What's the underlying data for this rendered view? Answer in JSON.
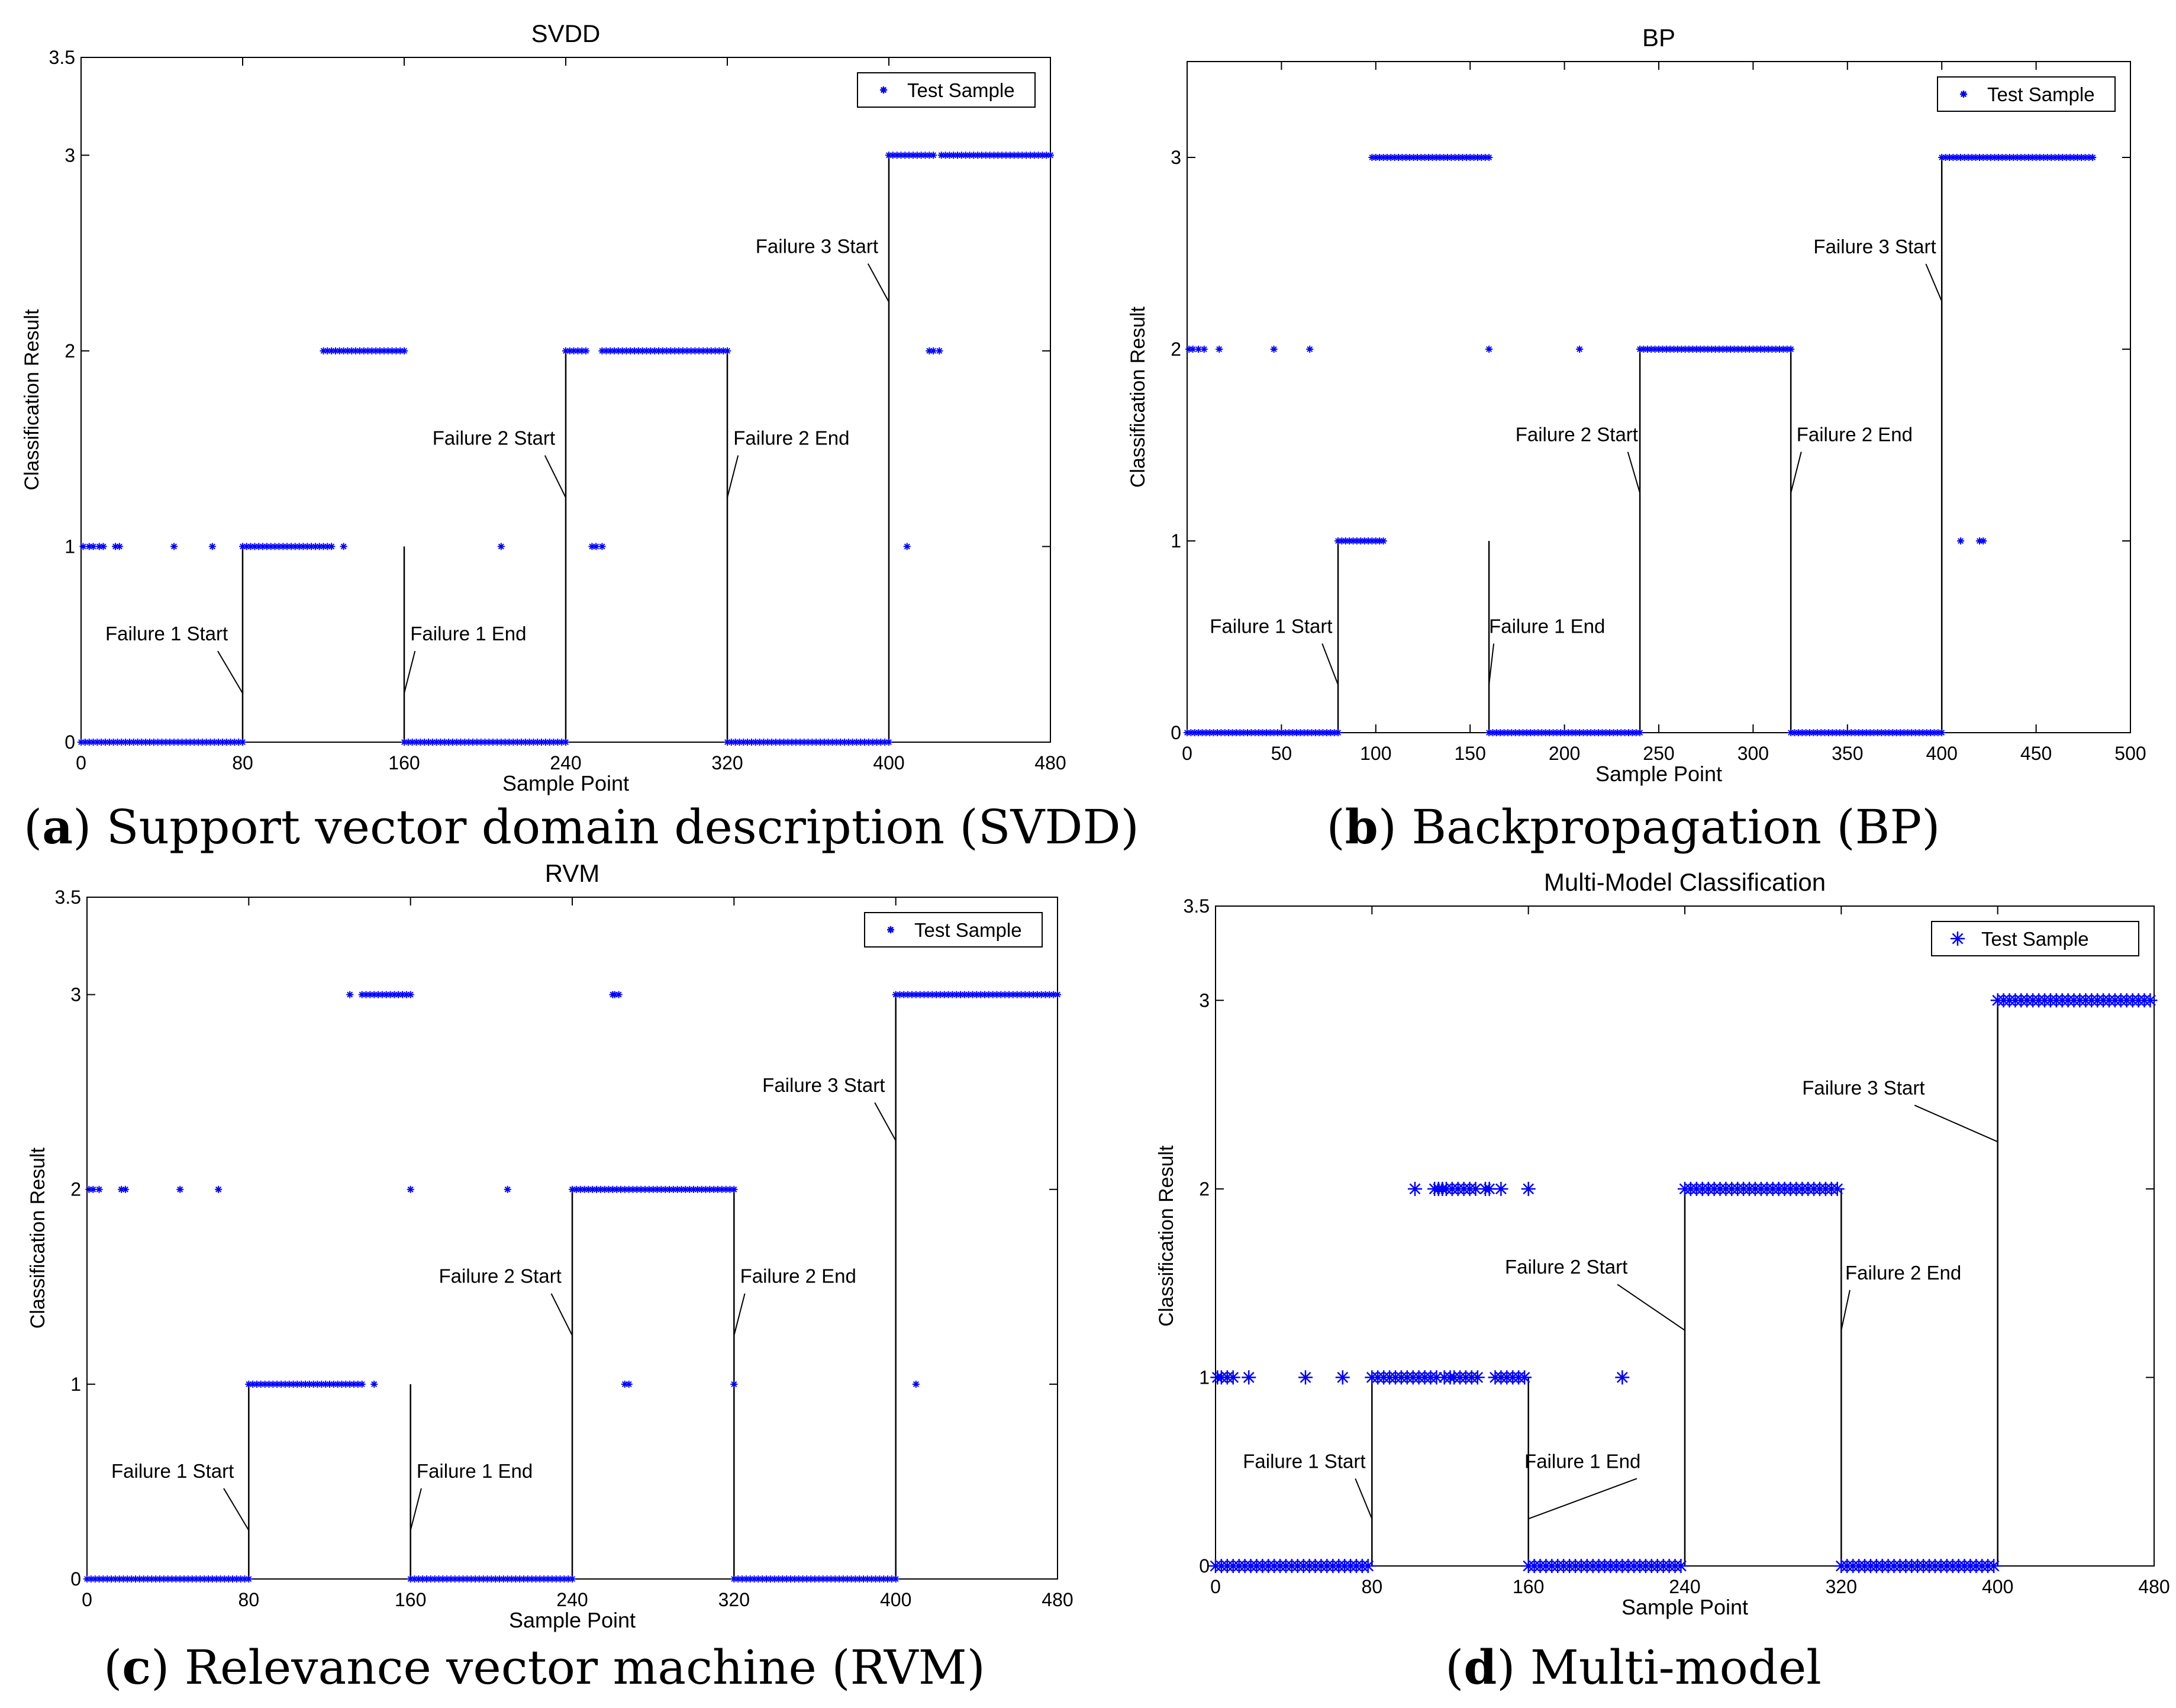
{
  "colors": {
    "marker": "#0000ff",
    "axis": "#000000",
    "background": "#ffffff"
  },
  "captions": [
    {
      "letter": "a",
      "text": "Support vector domain description (SVDD)"
    },
    {
      "letter": "b",
      "text": "Backpropagation (BP)"
    },
    {
      "letter": "c",
      "text": "Relevance vector machine (RVM)"
    },
    {
      "letter": "d",
      "text": "Multi-model"
    }
  ],
  "chart_data": [
    {
      "type": "scatter",
      "title": "SVDD",
      "xlabel": "Sample Point",
      "ylabel": "Classification Result",
      "xlim": [
        0,
        480
      ],
      "ylim": [
        0,
        3.5
      ],
      "xticks": [
        0,
        80,
        160,
        240,
        320,
        400,
        480
      ],
      "yticks": [
        0,
        1,
        2,
        3,
        3.5
      ],
      "ytick_labels": [
        "0",
        "1",
        "2",
        "3",
        "3.5"
      ],
      "legend": {
        "label": "Test Sample",
        "position": "top-right"
      },
      "marker": "small-star",
      "segments": [
        {
          "from": 0,
          "to": 80,
          "value": 0
        },
        {
          "from": 80,
          "to": 125,
          "value": 1
        },
        {
          "from": 160,
          "to": 240,
          "value": 0
        },
        {
          "from": 240,
          "to": 250,
          "value": 2
        },
        {
          "from": 258,
          "to": 320,
          "value": 2
        },
        {
          "from": 320,
          "to": 400,
          "value": 0
        },
        {
          "from": 400,
          "to": 422,
          "value": 3
        },
        {
          "from": 426,
          "to": 480,
          "value": 3
        }
      ],
      "clusters": [
        {
          "from": 120,
          "to": 160,
          "value": 2
        }
      ],
      "points": [
        [
          1,
          1
        ],
        [
          4,
          1
        ],
        [
          6,
          1
        ],
        [
          9,
          1
        ],
        [
          11,
          1
        ],
        [
          17,
          1
        ],
        [
          19,
          1
        ],
        [
          46,
          1
        ],
        [
          65,
          1
        ],
        [
          130,
          1
        ],
        [
          208,
          1
        ],
        [
          253,
          1
        ],
        [
          255,
          1
        ],
        [
          258,
          1
        ],
        [
          409,
          1
        ],
        [
          420,
          2
        ],
        [
          422,
          2
        ],
        [
          425,
          2
        ]
      ],
      "vlines": [
        {
          "x": 80,
          "y0": 0,
          "y1": 1
        },
        {
          "x": 160,
          "y0": 0,
          "y1": 1
        },
        {
          "x": 240,
          "y0": 0,
          "y1": 2
        },
        {
          "x": 320,
          "y0": 0,
          "y1": 2
        },
        {
          "x": 400,
          "y0": 0,
          "y1": 3
        }
      ],
      "annotations": [
        {
          "text": "Failure 1 Start",
          "tx": 12,
          "ty": 0.52,
          "ax": 80,
          "ay": 0.25
        },
        {
          "text": "Failure 1 End",
          "tx": 163,
          "ty": 0.52,
          "ax": 160,
          "ay": 0.25
        },
        {
          "text": "Failure 2 Start",
          "tx": 174,
          "ty": 1.52,
          "ax": 240,
          "ay": 1.25
        },
        {
          "text": "Failure 2 End",
          "tx": 323,
          "ty": 1.52,
          "ax": 320,
          "ay": 1.25
        },
        {
          "text": "Failure 3 Start",
          "tx": 334,
          "ty": 2.5,
          "ax": 400,
          "ay": 2.25
        }
      ]
    },
    {
      "type": "scatter",
      "title": "BP",
      "xlabel": "Sample Point",
      "ylabel": "Classification Result",
      "xlim": [
        0,
        500
      ],
      "ylim": [
        0,
        3.5
      ],
      "xticks": [
        0,
        50,
        100,
        150,
        200,
        250,
        300,
        350,
        400,
        450,
        500
      ],
      "yticks": [
        0,
        1,
        2,
        3
      ],
      "ytick_labels": [
        "0",
        "1",
        "2",
        "3"
      ],
      "legend": {
        "label": "Test Sample",
        "position": "top-right"
      },
      "marker": "small-star",
      "segments": [
        {
          "from": 0,
          "to": 80,
          "value": 0
        },
        {
          "from": 80,
          "to": 105,
          "value": 1
        },
        {
          "from": 98,
          "to": 160,
          "value": 3
        },
        {
          "from": 160,
          "to": 240,
          "value": 0
        },
        {
          "from": 240,
          "to": 320,
          "value": 2
        },
        {
          "from": 320,
          "to": 400,
          "value": 0
        },
        {
          "from": 400,
          "to": 480,
          "value": 3
        }
      ],
      "clusters": [],
      "points": [
        [
          1,
          2
        ],
        [
          3,
          2
        ],
        [
          6,
          2
        ],
        [
          9,
          2
        ],
        [
          17,
          2
        ],
        [
          46,
          2
        ],
        [
          65,
          2
        ],
        [
          160,
          2
        ],
        [
          208,
          2
        ],
        [
          410,
          1
        ],
        [
          420,
          1
        ],
        [
          422,
          1
        ]
      ],
      "vlines": [
        {
          "x": 80,
          "y0": 0,
          "y1": 1
        },
        {
          "x": 160,
          "y0": 0,
          "y1": 1
        },
        {
          "x": 240,
          "y0": 0,
          "y1": 2
        },
        {
          "x": 320,
          "y0": 0,
          "y1": 2
        },
        {
          "x": 400,
          "y0": 0,
          "y1": 3
        }
      ],
      "annotations": [
        {
          "text": "Failure 1 Start",
          "tx": 12,
          "ty": 0.52,
          "ax": 80,
          "ay": 0.25
        },
        {
          "text": "Failure 1 End",
          "tx": 160,
          "ty": 0.52,
          "ax": 160,
          "ay": 0.25
        },
        {
          "text": "Failure 2 Start",
          "tx": 174,
          "ty": 1.52,
          "ax": 240,
          "ay": 1.25
        },
        {
          "text": "Failure 2 End",
          "tx": 323,
          "ty": 1.52,
          "ax": 320,
          "ay": 1.25
        },
        {
          "text": "Failure 3 Start",
          "tx": 332,
          "ty": 2.5,
          "ax": 400,
          "ay": 2.25
        }
      ]
    },
    {
      "type": "scatter",
      "title": "RVM",
      "xlabel": "Sample Point",
      "ylabel": "Classification Result",
      "xlim": [
        0,
        480
      ],
      "ylim": [
        0,
        3.5
      ],
      "xticks": [
        0,
        80,
        160,
        240,
        320,
        400,
        480
      ],
      "yticks": [
        0,
        1,
        2,
        3,
        3.5
      ],
      "ytick_labels": [
        "0",
        "1",
        "2",
        "3",
        "3.5"
      ],
      "legend": {
        "label": "Test Sample",
        "position": "top-right"
      },
      "marker": "small-star",
      "segments": [
        {
          "from": 0,
          "to": 80,
          "value": 0
        },
        {
          "from": 80,
          "to": 137,
          "value": 1
        },
        {
          "from": 160,
          "to": 240,
          "value": 0
        },
        {
          "from": 240,
          "to": 268,
          "value": 2
        },
        {
          "from": 270,
          "to": 320,
          "value": 2
        },
        {
          "from": 320,
          "to": 400,
          "value": 0
        },
        {
          "from": 400,
          "to": 480,
          "value": 3
        }
      ],
      "clusters": [
        {
          "from": 136,
          "to": 160,
          "value": 3
        }
      ],
      "points": [
        [
          1,
          2
        ],
        [
          3,
          2
        ],
        [
          6,
          2
        ],
        [
          17,
          2
        ],
        [
          19,
          2
        ],
        [
          46,
          2
        ],
        [
          65,
          2
        ],
        [
          160,
          2
        ],
        [
          208,
          2
        ],
        [
          130,
          3
        ],
        [
          260,
          3
        ],
        [
          261,
          3
        ],
        [
          263,
          3
        ],
        [
          142,
          1
        ],
        [
          266,
          1
        ],
        [
          268,
          1
        ],
        [
          320,
          1
        ],
        [
          410,
          1
        ]
      ],
      "vlines": [
        {
          "x": 80,
          "y0": 0,
          "y1": 1
        },
        {
          "x": 160,
          "y0": 0,
          "y1": 1
        },
        {
          "x": 240,
          "y0": 0,
          "y1": 2
        },
        {
          "x": 320,
          "y0": 0,
          "y1": 2
        },
        {
          "x": 400,
          "y0": 0,
          "y1": 3
        }
      ],
      "annotations": [
        {
          "text": "Failure 1 Start",
          "tx": 12,
          "ty": 0.52,
          "ax": 80,
          "ay": 0.25
        },
        {
          "text": "Failure 1 End",
          "tx": 163,
          "ty": 0.52,
          "ax": 160,
          "ay": 0.25
        },
        {
          "text": "Failure 2 Start",
          "tx": 174,
          "ty": 1.52,
          "ax": 240,
          "ay": 1.25
        },
        {
          "text": "Failure 2 End",
          "tx": 323,
          "ty": 1.52,
          "ax": 320,
          "ay": 1.25
        },
        {
          "text": "Failure 3 Start",
          "tx": 334,
          "ty": 2.5,
          "ax": 400,
          "ay": 2.25
        }
      ]
    },
    {
      "type": "scatter",
      "title": "Multi-Model Classification",
      "xlabel": "Sample Point",
      "ylabel": "Classification Result",
      "xlim": [
        0,
        480
      ],
      "ylim": [
        0,
        3.5
      ],
      "xticks": [
        0,
        80,
        160,
        240,
        320,
        400,
        480
      ],
      "yticks": [
        0,
        1,
        2,
        3,
        3.5
      ],
      "ytick_labels": [
        "0",
        "1",
        "2",
        "3",
        "3.5"
      ],
      "legend": {
        "label": "Test Sample",
        "position": "top-right"
      },
      "marker": "large-star",
      "segments": [
        {
          "from": 0,
          "to": 80,
          "value": 0
        },
        {
          "from": 80,
          "to": 115,
          "value": 1
        },
        {
          "from": 160,
          "to": 240,
          "value": 0
        },
        {
          "from": 240,
          "to": 320,
          "value": 2
        },
        {
          "from": 320,
          "to": 400,
          "value": 0
        },
        {
          "from": 400,
          "to": 480,
          "value": 3
        }
      ],
      "clusters": [
        {
          "from": 118,
          "to": 134,
          "value": 2
        },
        {
          "from": 122,
          "to": 135,
          "value": 1
        },
        {
          "from": 143,
          "to": 160,
          "value": 1
        }
      ],
      "points": [
        [
          1,
          1
        ],
        [
          3,
          1
        ],
        [
          6,
          1
        ],
        [
          9,
          1
        ],
        [
          17,
          1
        ],
        [
          46,
          1
        ],
        [
          65,
          1
        ],
        [
          208,
          1
        ],
        [
          117,
          1
        ],
        [
          120,
          1
        ],
        [
          102,
          2
        ],
        [
          112,
          2
        ],
        [
          114,
          2
        ],
        [
          116,
          2
        ],
        [
          138,
          2
        ],
        [
          140,
          2
        ],
        [
          146,
          2
        ],
        [
          160,
          2
        ]
      ],
      "vlines": [
        {
          "x": 80,
          "y0": 0,
          "y1": 1
        },
        {
          "x": 160,
          "y0": 0,
          "y1": 1
        },
        {
          "x": 240,
          "y0": 0,
          "y1": 2
        },
        {
          "x": 320,
          "y0": 0,
          "y1": 2
        },
        {
          "x": 400,
          "y0": 0,
          "y1": 3
        }
      ],
      "annotations": [
        {
          "text": "Failure 1 Start",
          "tx": 14,
          "ty": 0.52,
          "ax": 80,
          "ay": 0.25
        },
        {
          "text": "Failure 1 End",
          "tx": 158,
          "ty": 0.52,
          "ax": 160,
          "ay": 0.25
        },
        {
          "text": "Failure 2 Start",
          "tx": 148,
          "ty": 1.55,
          "ax": 240,
          "ay": 1.25
        },
        {
          "text": "Failure 2 End",
          "tx": 322,
          "ty": 1.52,
          "ax": 320,
          "ay": 1.25
        },
        {
          "text": "Failure 3 Start",
          "tx": 300,
          "ty": 2.5,
          "ax": 400,
          "ay": 2.25
        }
      ]
    }
  ]
}
